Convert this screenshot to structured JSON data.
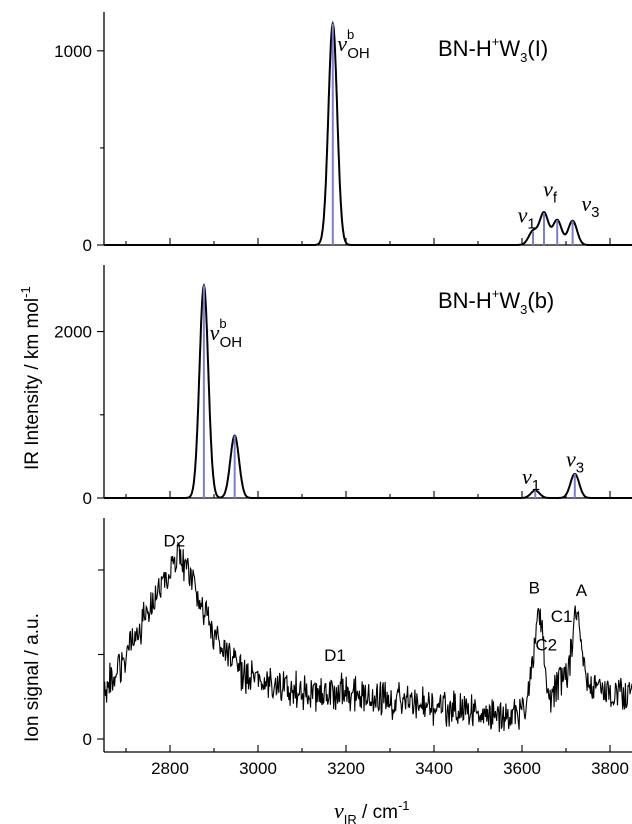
{
  "chart_data": [
    {
      "type": "line",
      "title": "BN-H⁺W₃(I)",
      "xlim": [
        2650,
        3850
      ],
      "ylim": [
        0,
        1200
      ],
      "yticks": [
        0,
        1000
      ],
      "peak_width": 10,
      "series": [
        {
          "values": [
            [
              3170,
              1140
            ],
            [
              3625,
              70
            ],
            [
              3650,
              165
            ],
            [
              3680,
              128
            ],
            [
              3715,
              125
            ]
          ]
        }
      ],
      "annotations": [
        {
          "text": "ν",
          "sub": "OH",
          "sup": "b",
          "x": 3180,
          "y": 1000
        },
        {
          "text": "ν",
          "sub": "f",
          "x": 3648,
          "y": 250
        },
        {
          "text": "ν",
          "sub": "1",
          "x": 3590,
          "y": 115
        },
        {
          "text": "ν",
          "sub": "3",
          "x": 3735,
          "y": 175
        }
      ]
    },
    {
      "type": "line",
      "title": "BN-H⁺W₃(b)",
      "xlim": [
        2650,
        3850
      ],
      "ylim": [
        0,
        2800
      ],
      "yticks": [
        0,
        2000
      ],
      "peak_width": 10,
      "series": [
        {
          "values": [
            [
              2877,
              2550
            ],
            [
              2947,
              750
            ],
            [
              3630,
              90
            ],
            [
              3720,
              290
            ]
          ]
        }
      ],
      "annotations": [
        {
          "text": "ν",
          "sub": "OH",
          "sup": "b",
          "x": 2890,
          "y": 1900
        },
        {
          "text": "ν",
          "sub": "1",
          "x": 3600,
          "y": 170
        },
        {
          "text": "ν",
          "sub": "3",
          "x": 3700,
          "y": 380
        }
      ]
    },
    {
      "type": "line",
      "xlabel": "ν_IR / cm⁻¹",
      "xlim": [
        2650,
        3850
      ],
      "ylim": [
        -0.1,
        1.7
      ],
      "yticks": [
        0
      ],
      "xticks": [
        2800,
        3000,
        3200,
        3400,
        3600,
        3800
      ],
      "series": [
        {
          "values": [
            [
              2650,
              0.38
            ],
            [
              2700,
              0.65
            ],
            [
              2750,
              0.98
            ],
            [
              2800,
              1.3
            ],
            [
              2825,
              1.42
            ],
            [
              2850,
              1.22
            ],
            [
              2880,
              0.95
            ],
            [
              2920,
              0.7
            ],
            [
              2960,
              0.52
            ],
            [
              3000,
              0.45
            ],
            [
              3050,
              0.4
            ],
            [
              3100,
              0.36
            ],
            [
              3150,
              0.35
            ],
            [
              3200,
              0.36
            ],
            [
              3250,
              0.33
            ],
            [
              3300,
              0.3
            ],
            [
              3350,
              0.28
            ],
            [
              3400,
              0.25
            ],
            [
              3450,
              0.22
            ],
            [
              3500,
              0.2
            ],
            [
              3550,
              0.18
            ],
            [
              3590,
              0.15
            ],
            [
              3610,
              0.25
            ],
            [
              3625,
              0.6
            ],
            [
              3638,
              1.02
            ],
            [
              3645,
              0.95
            ],
            [
              3652,
              0.55
            ],
            [
              3660,
              0.3
            ],
            [
              3670,
              0.35
            ],
            [
              3690,
              0.45
            ],
            [
              3705,
              0.55
            ],
            [
              3715,
              0.75
            ],
            [
              3725,
              1.05
            ],
            [
              3732,
              0.9
            ],
            [
              3745,
              0.45
            ],
            [
              3760,
              0.38
            ],
            [
              3800,
              0.35
            ],
            [
              3850,
              0.36
            ]
          ]
        }
      ],
      "annotations": [
        {
          "text": "D2",
          "x": 2810,
          "y": 1.48
        },
        {
          "text": "D1",
          "x": 3175,
          "y": 0.6
        },
        {
          "text": "B",
          "x": 3628,
          "y": 1.12
        },
        {
          "text": "C2",
          "x": 3655,
          "y": 0.68
        },
        {
          "text": "C1",
          "x": 3690,
          "y": 0.9
        },
        {
          "text": "A",
          "x": 3735,
          "y": 1.1
        }
      ]
    }
  ],
  "labels": {
    "ylabel_top": "IR Intensity / km mol",
    "ylabel_top_sup": "-1",
    "ylabel_bottom": "Ion signal / a.u.",
    "xlabel_main": "IR",
    "xlabel_unit": " / cm",
    "xlabel_sup": "-1",
    "panel1_title_a": "BN-H",
    "panel1_title_sup": "+",
    "panel1_title_b": "W",
    "panel1_title_sub": "3",
    "panel1_title_c": "(I)",
    "panel2_title_a": "BN-H",
    "panel2_title_sup": "+",
    "panel2_title_b": "W",
    "panel2_title_sub": "3",
    "panel2_title_c": "(b)"
  }
}
